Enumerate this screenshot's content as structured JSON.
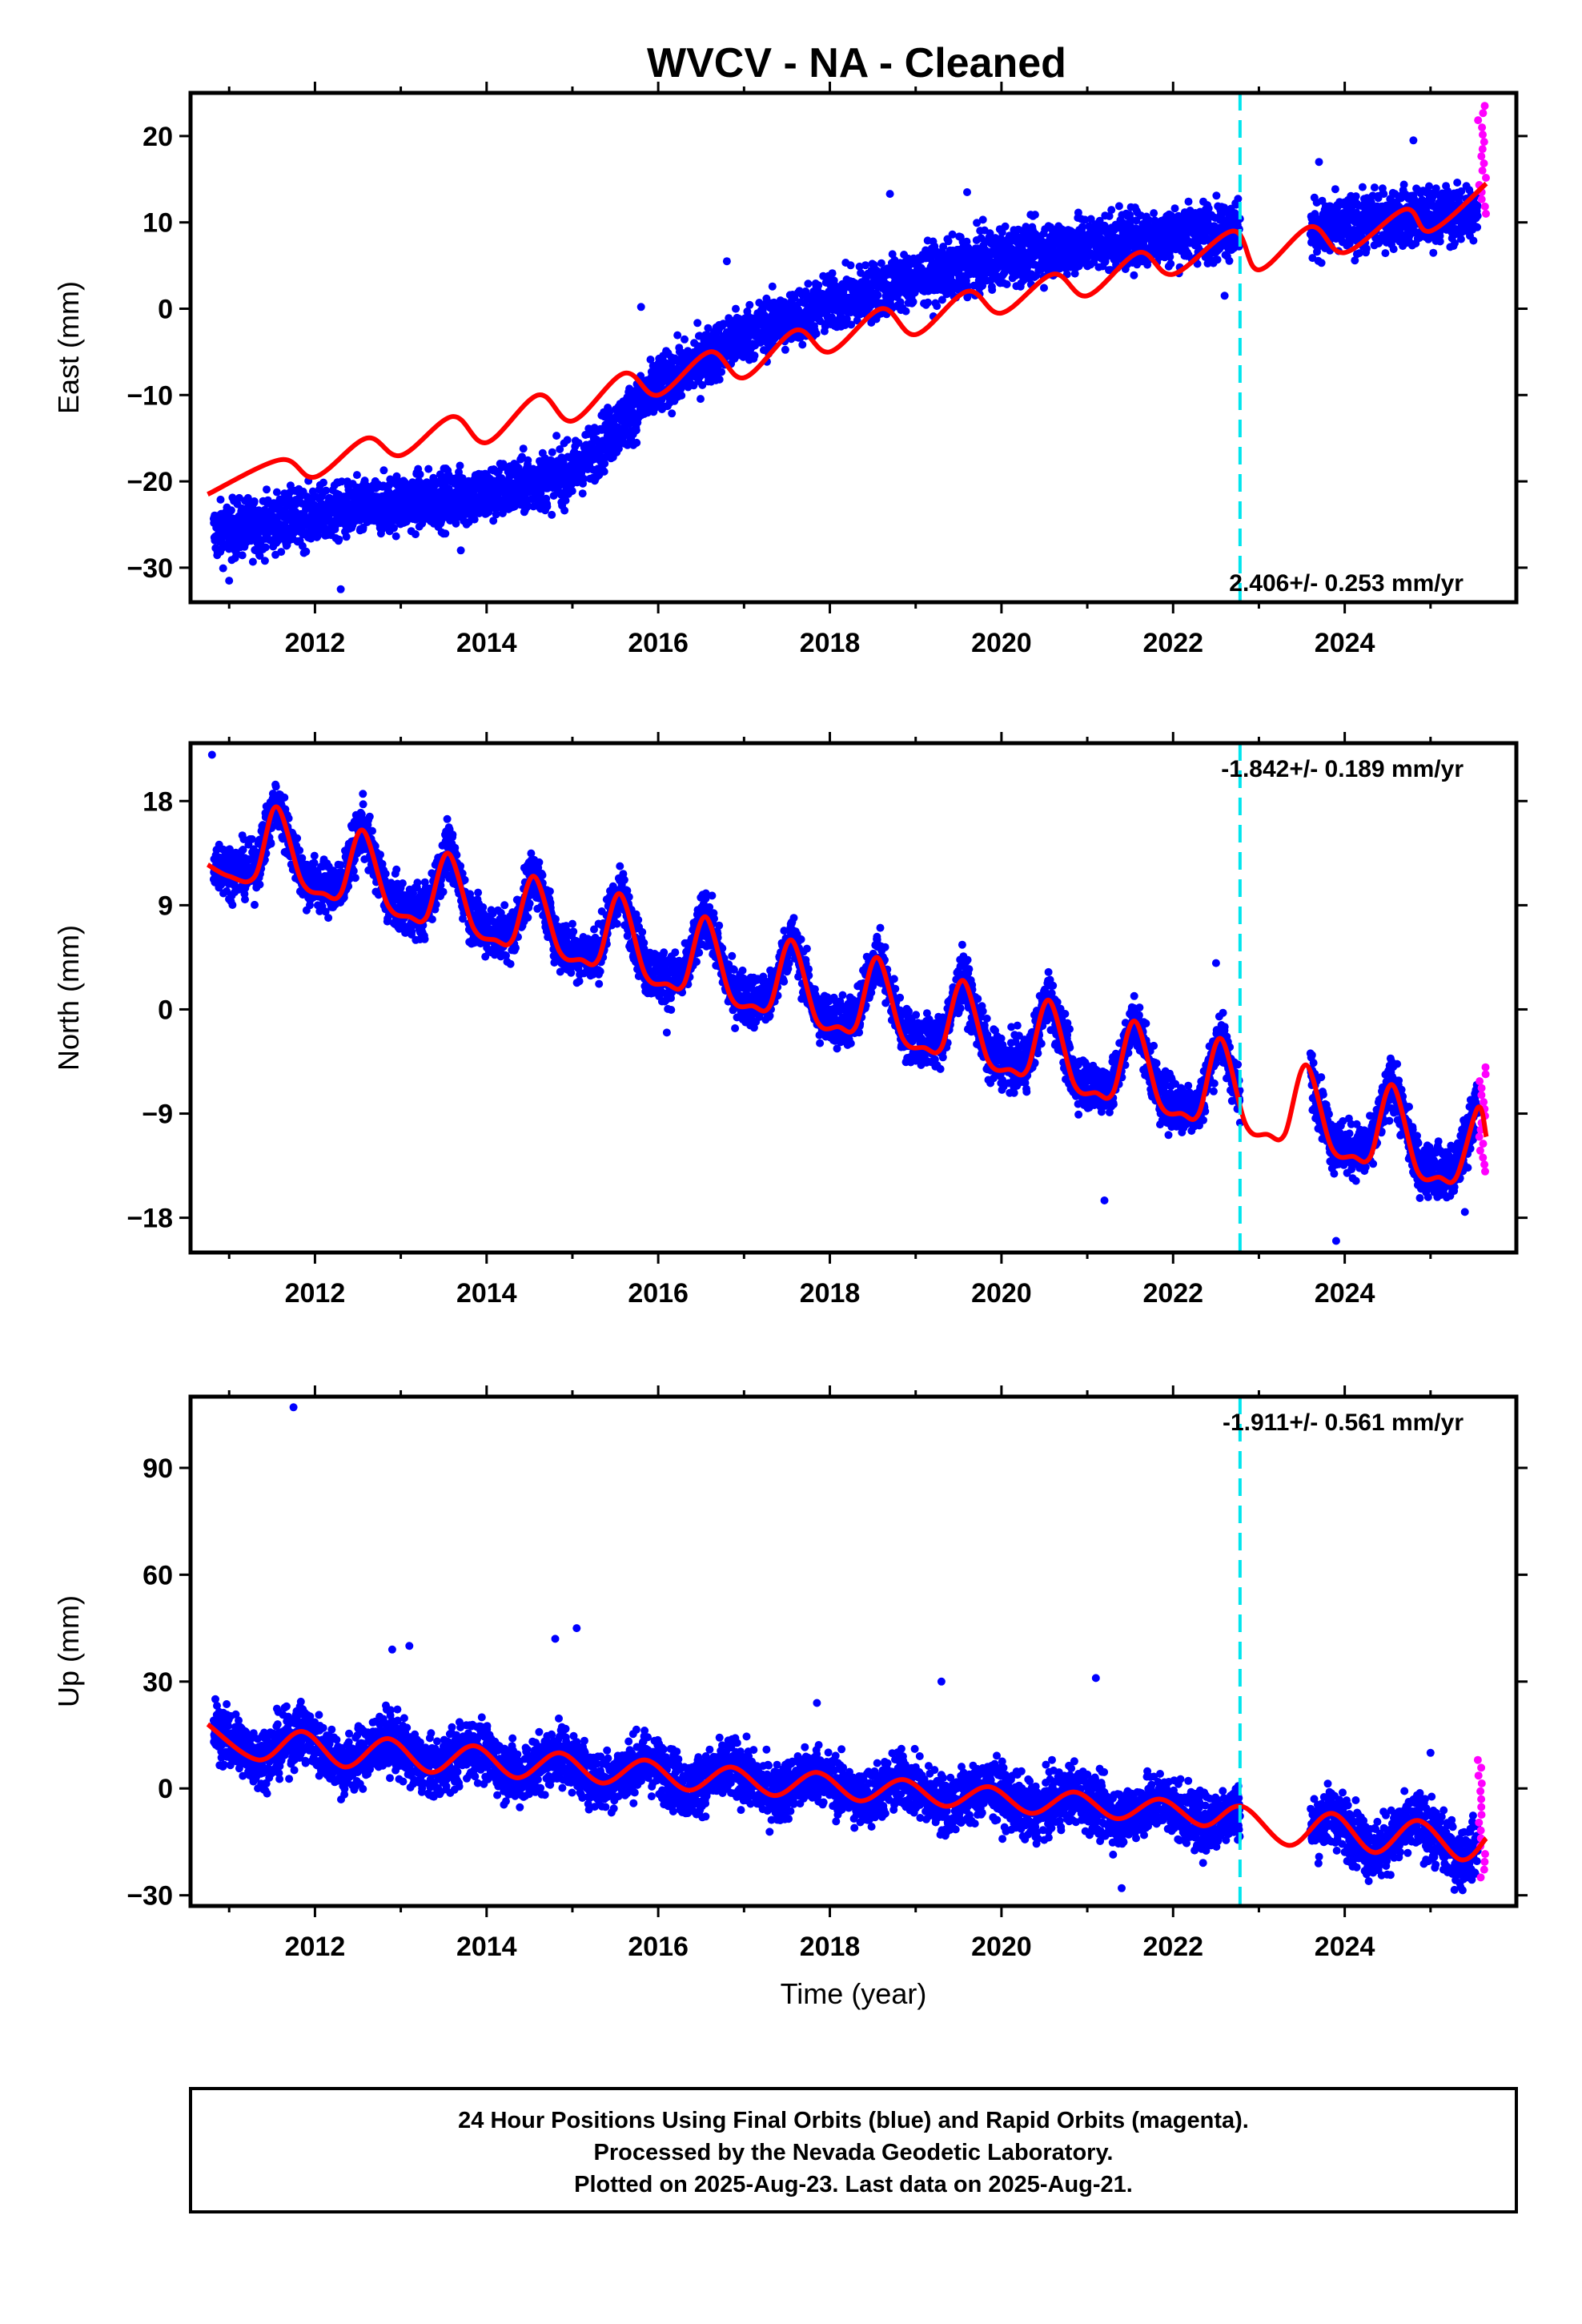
{
  "title": "WVCV  - NA - Cleaned",
  "colors": {
    "final_orbits": "#0000ff",
    "rapid_orbits": "#ff00ff",
    "model": "#ff0000",
    "event_line": "#00e5ee"
  },
  "footer": {
    "line1": "24 Hour Positions Using Final Orbits (blue) and Rapid Orbits (magenta).",
    "line2": "Processed by the Nevada Geodetic Laboratory.",
    "line3": "Plotted on 2025-Aug-23. Last data on 2025-Aug-21."
  },
  "chart_data": [
    {
      "type": "scatter",
      "component": "east",
      "ylabel": "East (mm)",
      "xlabel": "",
      "xlim": [
        2010.55,
        2026.0
      ],
      "ylim": [
        -34,
        25
      ],
      "xticks": [
        2012,
        2014,
        2016,
        2018,
        2020,
        2022,
        2024
      ],
      "yticks": [
        -30,
        -20,
        -10,
        0,
        10,
        20
      ],
      "rate_label": "2.406+/- 0.253 mm/yr",
      "event_line_x": 2022.78,
      "data_gap": [
        2022.78,
        2023.6
      ],
      "final_orbits_trend": [
        [
          2010.8,
          -26
        ],
        [
          2012.0,
          -24
        ],
        [
          2013.0,
          -22.5
        ],
        [
          2014.0,
          -21.5
        ],
        [
          2015.0,
          -19
        ],
        [
          2015.4,
          -15
        ],
        [
          2016.0,
          -9
        ],
        [
          2017.0,
          -3
        ],
        [
          2018.0,
          0.5
        ],
        [
          2019.0,
          3.5
        ],
        [
          2020.0,
          6
        ],
        [
          2021.0,
          7.5
        ],
        [
          2022.0,
          8.5
        ],
        [
          2022.75,
          9.5
        ],
        [
          2023.65,
          9
        ],
        [
          2024.5,
          10.5
        ],
        [
          2025.6,
          11
        ]
      ],
      "final_orbits_scatter_mm": 2.2,
      "rapid_orbits_range": [
        2025.55,
        2025.65
      ],
      "rapid_orbits_level": [
        11,
        23.5
      ],
      "model_curve": [
        [
          2010.75,
          -21.5
        ],
        [
          2011.6,
          -17.5
        ],
        [
          2012.0,
          -19.5
        ],
        [
          2012.6,
          -15
        ],
        [
          2013.0,
          -17
        ],
        [
          2013.6,
          -12.5
        ],
        [
          2014.0,
          -15.5
        ],
        [
          2014.6,
          -10
        ],
        [
          2015.0,
          -13
        ],
        [
          2015.6,
          -7.5
        ],
        [
          2016.0,
          -10
        ],
        [
          2016.6,
          -5
        ],
        [
          2017.0,
          -8
        ],
        [
          2017.6,
          -2.5
        ],
        [
          2018.0,
          -5
        ],
        [
          2018.6,
          0
        ],
        [
          2019.0,
          -3
        ],
        [
          2019.6,
          2
        ],
        [
          2020.0,
          -0.5
        ],
        [
          2020.6,
          4
        ],
        [
          2021.0,
          1.5
        ],
        [
          2021.6,
          6.5
        ],
        [
          2022.0,
          4
        ],
        [
          2022.7,
          9
        ],
        [
          2023.0,
          4.5
        ],
        [
          2023.6,
          9.5
        ],
        [
          2024.0,
          6.5
        ],
        [
          2024.7,
          11.5
        ],
        [
          2025.0,
          9
        ],
        [
          2025.65,
          14.5
        ]
      ],
      "outliers": [
        [
          2011.0,
          -31.5
        ],
        [
          2012.3,
          -32.5
        ],
        [
          2013.7,
          -28
        ],
        [
          2015.8,
          0.2
        ],
        [
          2016.8,
          5.5
        ],
        [
          2018.7,
          13.3
        ],
        [
          2019.6,
          13.5
        ],
        [
          2022.6,
          1.5
        ],
        [
          2023.7,
          17
        ],
        [
          2024.8,
          19.5
        ]
      ]
    },
    {
      "type": "scatter",
      "component": "north",
      "ylabel": "North (mm)",
      "xlabel": "",
      "xlim": [
        2010.55,
        2026.0
      ],
      "ylim": [
        -21,
        23
      ],
      "xticks": [
        2012,
        2014,
        2016,
        2018,
        2020,
        2022,
        2024
      ],
      "yticks": [
        -18,
        -9,
        0,
        9,
        18
      ],
      "rate_label": "-1.842+/- 0.189 mm/yr",
      "event_line_x": 2022.78,
      "data_gap": [
        2022.78,
        2023.6
      ],
      "final_orbits_scatter_mm": 1.5,
      "rapid_orbits_range": [
        2025.55,
        2025.65
      ],
      "rapid_orbits_level": [
        -14,
        -5
      ],
      "model_curve": [
        [
          2010.75,
          12.5
        ],
        [
          2011.0,
          11.5
        ],
        [
          2011.3,
          11.5
        ],
        [
          2011.55,
          17.5
        ],
        [
          2011.85,
          11
        ],
        [
          2012.1,
          10
        ],
        [
          2012.3,
          10
        ],
        [
          2012.55,
          15.5
        ],
        [
          2012.85,
          9
        ],
        [
          2013.1,
          8
        ],
        [
          2013.3,
          8
        ],
        [
          2013.55,
          13.5
        ],
        [
          2013.85,
          7
        ],
        [
          2014.1,
          6
        ],
        [
          2014.3,
          6
        ],
        [
          2014.55,
          11.5
        ],
        [
          2014.85,
          5
        ],
        [
          2015.1,
          4.3
        ],
        [
          2015.3,
          4.3
        ],
        [
          2015.55,
          10
        ],
        [
          2015.85,
          3
        ],
        [
          2016.1,
          2.2
        ],
        [
          2016.3,
          2.2
        ],
        [
          2016.55,
          8
        ],
        [
          2016.85,
          1
        ],
        [
          2017.1,
          0.3
        ],
        [
          2017.3,
          0.3
        ],
        [
          2017.55,
          6
        ],
        [
          2017.85,
          -1
        ],
        [
          2018.1,
          -1.5
        ],
        [
          2018.3,
          -1.5
        ],
        [
          2018.55,
          4.5
        ],
        [
          2018.85,
          -2.5
        ],
        [
          2019.1,
          -3.3
        ],
        [
          2019.3,
          -3.3
        ],
        [
          2019.55,
          2.5
        ],
        [
          2019.85,
          -4.5
        ],
        [
          2020.1,
          -5.2
        ],
        [
          2020.3,
          -5.2
        ],
        [
          2020.55,
          0.8
        ],
        [
          2020.85,
          -6.5
        ],
        [
          2021.1,
          -7.2
        ],
        [
          2021.3,
          -7.2
        ],
        [
          2021.55,
          -1
        ],
        [
          2021.85,
          -8.2
        ],
        [
          2022.1,
          -9
        ],
        [
          2022.3,
          -9
        ],
        [
          2022.55,
          -2.5
        ],
        [
          2022.85,
          -10
        ],
        [
          2023.1,
          -10.8
        ],
        [
          2023.3,
          -10.8
        ],
        [
          2023.55,
          -4.8
        ],
        [
          2023.85,
          -12
        ],
        [
          2024.1,
          -12.7
        ],
        [
          2024.3,
          -12.7
        ],
        [
          2024.55,
          -6.5
        ],
        [
          2024.85,
          -14
        ],
        [
          2025.1,
          -14.5
        ],
        [
          2025.3,
          -14.5
        ],
        [
          2025.55,
          -8.5
        ],
        [
          2025.65,
          -11
        ]
      ],
      "outliers": [
        [
          2010.8,
          22
        ],
        [
          2015.4,
          9.5
        ],
        [
          2016.1,
          -2
        ],
        [
          2021.2,
          -16.5
        ],
        [
          2023.9,
          -20
        ],
        [
          2025.4,
          -17.5
        ],
        [
          2022.5,
          4
        ]
      ]
    },
    {
      "type": "scatter",
      "component": "up",
      "ylabel": "Up (mm)",
      "xlabel": "Time (year)",
      "xlim": [
        2010.55,
        2026.0
      ],
      "ylim": [
        -33,
        110
      ],
      "xticks": [
        2012,
        2014,
        2016,
        2018,
        2020,
        2022,
        2024
      ],
      "yticks": [
        -30,
        0,
        30,
        60,
        90
      ],
      "rate_label": "-1.911+/- 0.561 mm/yr",
      "event_line_x": 2022.78,
      "data_gap": [
        2022.78,
        2023.6
      ],
      "final_orbits_scatter_mm": 5.5,
      "rapid_orbits_range": [
        2025.55,
        2025.65
      ],
      "rapid_orbits_level": [
        -25,
        8
      ],
      "model_curve": [
        [
          2010.75,
          18
        ],
        [
          2011.35,
          8
        ],
        [
          2011.85,
          16
        ],
        [
          2012.35,
          6
        ],
        [
          2012.85,
          14
        ],
        [
          2013.35,
          4.5
        ],
        [
          2013.85,
          12
        ],
        [
          2014.35,
          3
        ],
        [
          2014.85,
          10
        ],
        [
          2015.35,
          1.5
        ],
        [
          2015.85,
          8
        ],
        [
          2016.35,
          -0.5
        ],
        [
          2016.85,
          6
        ],
        [
          2017.35,
          -2
        ],
        [
          2017.85,
          4.5
        ],
        [
          2018.35,
          -3.5
        ],
        [
          2018.85,
          2.5
        ],
        [
          2019.35,
          -5
        ],
        [
          2019.85,
          0.5
        ],
        [
          2020.35,
          -7
        ],
        [
          2020.85,
          -1
        ],
        [
          2021.35,
          -8.5
        ],
        [
          2021.85,
          -3
        ],
        [
          2022.35,
          -10.5
        ],
        [
          2022.8,
          -5
        ],
        [
          2023.35,
          -16
        ],
        [
          2023.85,
          -7
        ],
        [
          2024.35,
          -18
        ],
        [
          2024.85,
          -9
        ],
        [
          2025.35,
          -20
        ],
        [
          2025.65,
          -14
        ]
      ],
      "outliers": [
        [
          2011.75,
          107
        ],
        [
          2012.9,
          39
        ],
        [
          2013.1,
          40
        ],
        [
          2014.8,
          42
        ],
        [
          2015.05,
          45
        ],
        [
          2017.85,
          24
        ],
        [
          2019.3,
          30
        ],
        [
          2021.1,
          31
        ],
        [
          2021.4,
          -28
        ],
        [
          2025.0,
          10
        ]
      ]
    }
  ]
}
